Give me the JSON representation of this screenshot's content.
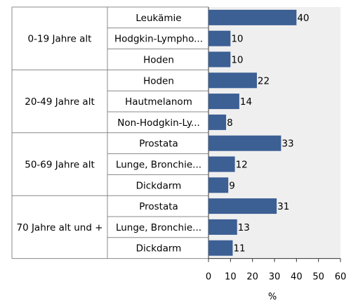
{
  "chart_data": {
    "type": "bar",
    "orientation": "horizontal",
    "xlabel": "%",
    "xlim": [
      0,
      60
    ],
    "xticks": [
      "0",
      "10",
      "20",
      "30",
      "40",
      "50",
      "60"
    ],
    "bar_color": "#3c5f94",
    "plot_background": "#efefef",
    "groups": [
      {
        "label": "0-19 Jahre alt",
        "items": [
          {
            "label": "Leukämie",
            "value": 40
          },
          {
            "label": "Hodgkin-Lympho...",
            "value": 10
          },
          {
            "label": "Hoden",
            "value": 10
          }
        ]
      },
      {
        "label": "20-49 Jahre alt",
        "items": [
          {
            "label": "Hoden",
            "value": 22
          },
          {
            "label": "Hautmelanom",
            "value": 14
          },
          {
            "label": "Non-Hodgkin-Ly...",
            "value": 8
          }
        ]
      },
      {
        "label": "50-69 Jahre alt",
        "items": [
          {
            "label": "Prostata",
            "value": 33
          },
          {
            "label": "Lunge, Bronchie...",
            "value": 12
          },
          {
            "label": "Dickdarm",
            "value": 9
          }
        ]
      },
      {
        "label": "70 Jahre alt und +",
        "items": [
          {
            "label": "Prostata",
            "value": 31
          },
          {
            "label": "Lunge, Bronchie...",
            "value": 13
          },
          {
            "label": "Dickdarm",
            "value": 11
          }
        ]
      }
    ]
  }
}
